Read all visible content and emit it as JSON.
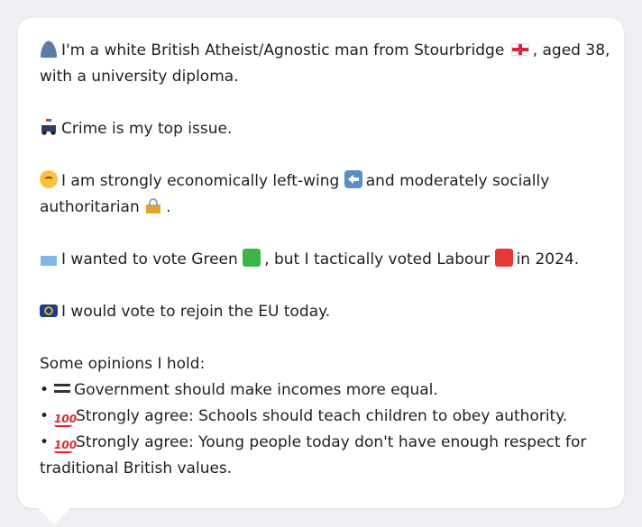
{
  "profile": {
    "intro_line1": "I'm a white British Atheist/Agnostic man from Stourbridge",
    "intro_line1_tail": ", aged 38,",
    "intro_line2": "with a university diploma.",
    "crime": "Crime is my top issue.",
    "stance_line1_a": "I am strongly economically left-wing",
    "stance_line1_b": "and moderately socially",
    "stance_line2": "authoritarian",
    "stance_line2_tail": ".",
    "vote_a": "I wanted to vote Green",
    "vote_b": ", but I tactically voted Labour",
    "vote_c": "in 2024.",
    "eu": "I would vote to rejoin the EU today.",
    "opinions_heading": "Some opinions I hold:",
    "bullet_char": "•",
    "opinions": [
      {
        "text": "Government should make incomes more equal.",
        "icon": "equals-icon"
      },
      {
        "text": "Strongly agree: Schools should teach children to obey authority.",
        "icon": "hundred-points-icon"
      },
      {
        "text": "Strongly agree: Young people today don't have enough respect for",
        "icon": "hundred-points-icon"
      }
    ],
    "opinion3_cont": "traditional British values."
  },
  "icons": {
    "hundred_text": "100"
  },
  "colors": {
    "card_bg": "#ffffff",
    "page_bg": "#eef0f3",
    "text": "#1f1f1f"
  }
}
